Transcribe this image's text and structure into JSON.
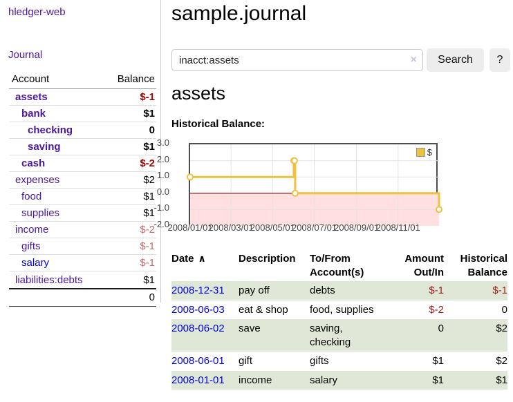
{
  "app": {
    "brand": "hledger-web",
    "nav_journal": "Journal"
  },
  "sidebar": {
    "header": {
      "account": "Account",
      "balance": "Balance"
    },
    "accounts": [
      {
        "name": "assets",
        "balance": "$-1",
        "indent": 0,
        "bold": true,
        "balance_tone": "neg-strong"
      },
      {
        "name": "bank",
        "balance": "$1",
        "indent": 1,
        "bold": true,
        "balance_tone": ""
      },
      {
        "name": "checking",
        "balance": "0",
        "indent": 2,
        "bold": true,
        "balance_tone": ""
      },
      {
        "name": "saving",
        "balance": "$1",
        "indent": 2,
        "bold": true,
        "balance_tone": ""
      },
      {
        "name": "cash",
        "balance": "$-2",
        "indent": 1,
        "bold": true,
        "balance_tone": "neg-strong"
      },
      {
        "name": "expenses",
        "balance": "$2",
        "indent": 0,
        "bold": false,
        "balance_tone": ""
      },
      {
        "name": "food",
        "balance": "$1",
        "indent": 1,
        "bold": false,
        "balance_tone": ""
      },
      {
        "name": "supplies",
        "balance": "$1",
        "indent": 1,
        "bold": false,
        "balance_tone": ""
      },
      {
        "name": "income",
        "balance": "$-2",
        "indent": 0,
        "bold": false,
        "balance_tone": "neg-soft"
      },
      {
        "name": "gifts",
        "balance": "$-1",
        "indent": 1,
        "bold": false,
        "balance_tone": "neg-soft"
      },
      {
        "name": "salary",
        "balance": "$-1",
        "indent": 1,
        "bold": false,
        "balance_tone": "neg-soft",
        "link_blue": true
      },
      {
        "name": "liabilities:debts",
        "balance": "$1",
        "indent": 0,
        "bold": false,
        "balance_tone": ""
      }
    ],
    "total": "0"
  },
  "header": {
    "title": "sample.journal"
  },
  "search": {
    "value": "inacct:assets",
    "clear_icon": "×",
    "button_label": "Search",
    "help_label": "?"
  },
  "account_page": {
    "title": "assets",
    "section_label": "Historical Balance:"
  },
  "chart_data": {
    "type": "line",
    "title": "Historical Balance",
    "steps": true,
    "series": [
      {
        "name": "$",
        "color": "#edc240",
        "points": [
          [
            "2008-01-01",
            1
          ],
          [
            "2008-06-01",
            2
          ],
          [
            "2008-06-02",
            2
          ],
          [
            "2008-06-03",
            0
          ],
          [
            "2008-12-31",
            -1
          ]
        ]
      }
    ],
    "x_ticks": [
      "2008/01/01",
      "2008/03/01",
      "2008/05/01",
      "2008/07/01",
      "2008/09/01",
      "2008/11/01"
    ],
    "y_ticks": [
      3.0,
      2.0,
      1.0,
      0.0,
      -1.0,
      -2.0
    ],
    "ylim": [
      -2,
      3
    ],
    "x_range": [
      "2008-01-01",
      "2008-12-31"
    ],
    "grid": true,
    "legend": {
      "label": "$",
      "position": "top-right"
    },
    "negative_region_color": "#ffdfdf",
    "zero_line_color": "#8b0000",
    "grid_color": "#e3e3e3"
  },
  "table": {
    "headers": {
      "date": "Date",
      "sort_caret": "∧",
      "description": "Description",
      "accounts": "To/From Account(s)",
      "amount": "Amount Out/In",
      "balance": "Historical Balance"
    },
    "rows": [
      {
        "date": "2008-12-31",
        "description": "pay off",
        "accounts": "debts",
        "amount": "$-1",
        "balance": "$-1",
        "amount_neg": true,
        "balance_neg": true,
        "shaded": true
      },
      {
        "date": "2008-06-03",
        "description": "eat & shop",
        "accounts": "food, supplies",
        "amount": "$-2",
        "balance": "0",
        "amount_neg": true,
        "balance_neg": false,
        "shaded": false
      },
      {
        "date": "2008-06-02",
        "description": "save",
        "accounts": "saving, checking",
        "amount": "0",
        "balance": "$2",
        "amount_neg": false,
        "balance_neg": false,
        "shaded": true
      },
      {
        "date": "2008-06-01",
        "description": "gift",
        "accounts": "gifts",
        "amount": "$1",
        "balance": "$2",
        "amount_neg": false,
        "balance_neg": false,
        "shaded": false
      },
      {
        "date": "2008-01-01",
        "description": "income",
        "accounts": "salary",
        "amount": "$1",
        "balance": "$1",
        "amount_neg": false,
        "balance_neg": false,
        "shaded": true
      }
    ]
  }
}
